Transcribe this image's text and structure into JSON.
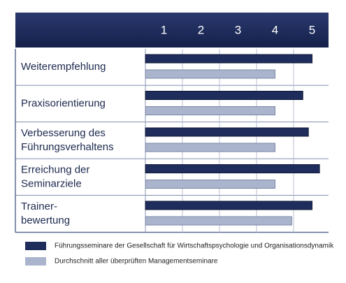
{
  "chart_data": {
    "type": "hbar",
    "categories": [
      [
        "Weiterempfehlung"
      ],
      [
        "Praxisorientierung"
      ],
      [
        "Verbesserung des",
        "Führungsverhaltens"
      ],
      [
        "Erreichung der",
        "Seminarziele"
      ],
      [
        "Trainer-",
        "bewertung"
      ]
    ],
    "series": [
      {
        "name": "Führungsseminare der Gesellschaft für Wirtschaftspsychologie und Organisationsdynamik",
        "color": "#1f2d5c",
        "values": [
          5.0,
          4.75,
          4.9,
          5.2,
          5.0
        ]
      },
      {
        "name": "Durchschnitt aller überprüften Managementseminare",
        "color": "#aab4cc",
        "values": [
          4.0,
          4.0,
          4.0,
          4.0,
          4.45
        ]
      }
    ],
    "xlim": [
      0.5,
      5.5
    ],
    "xticks": [
      1,
      2,
      3,
      4,
      5
    ]
  }
}
